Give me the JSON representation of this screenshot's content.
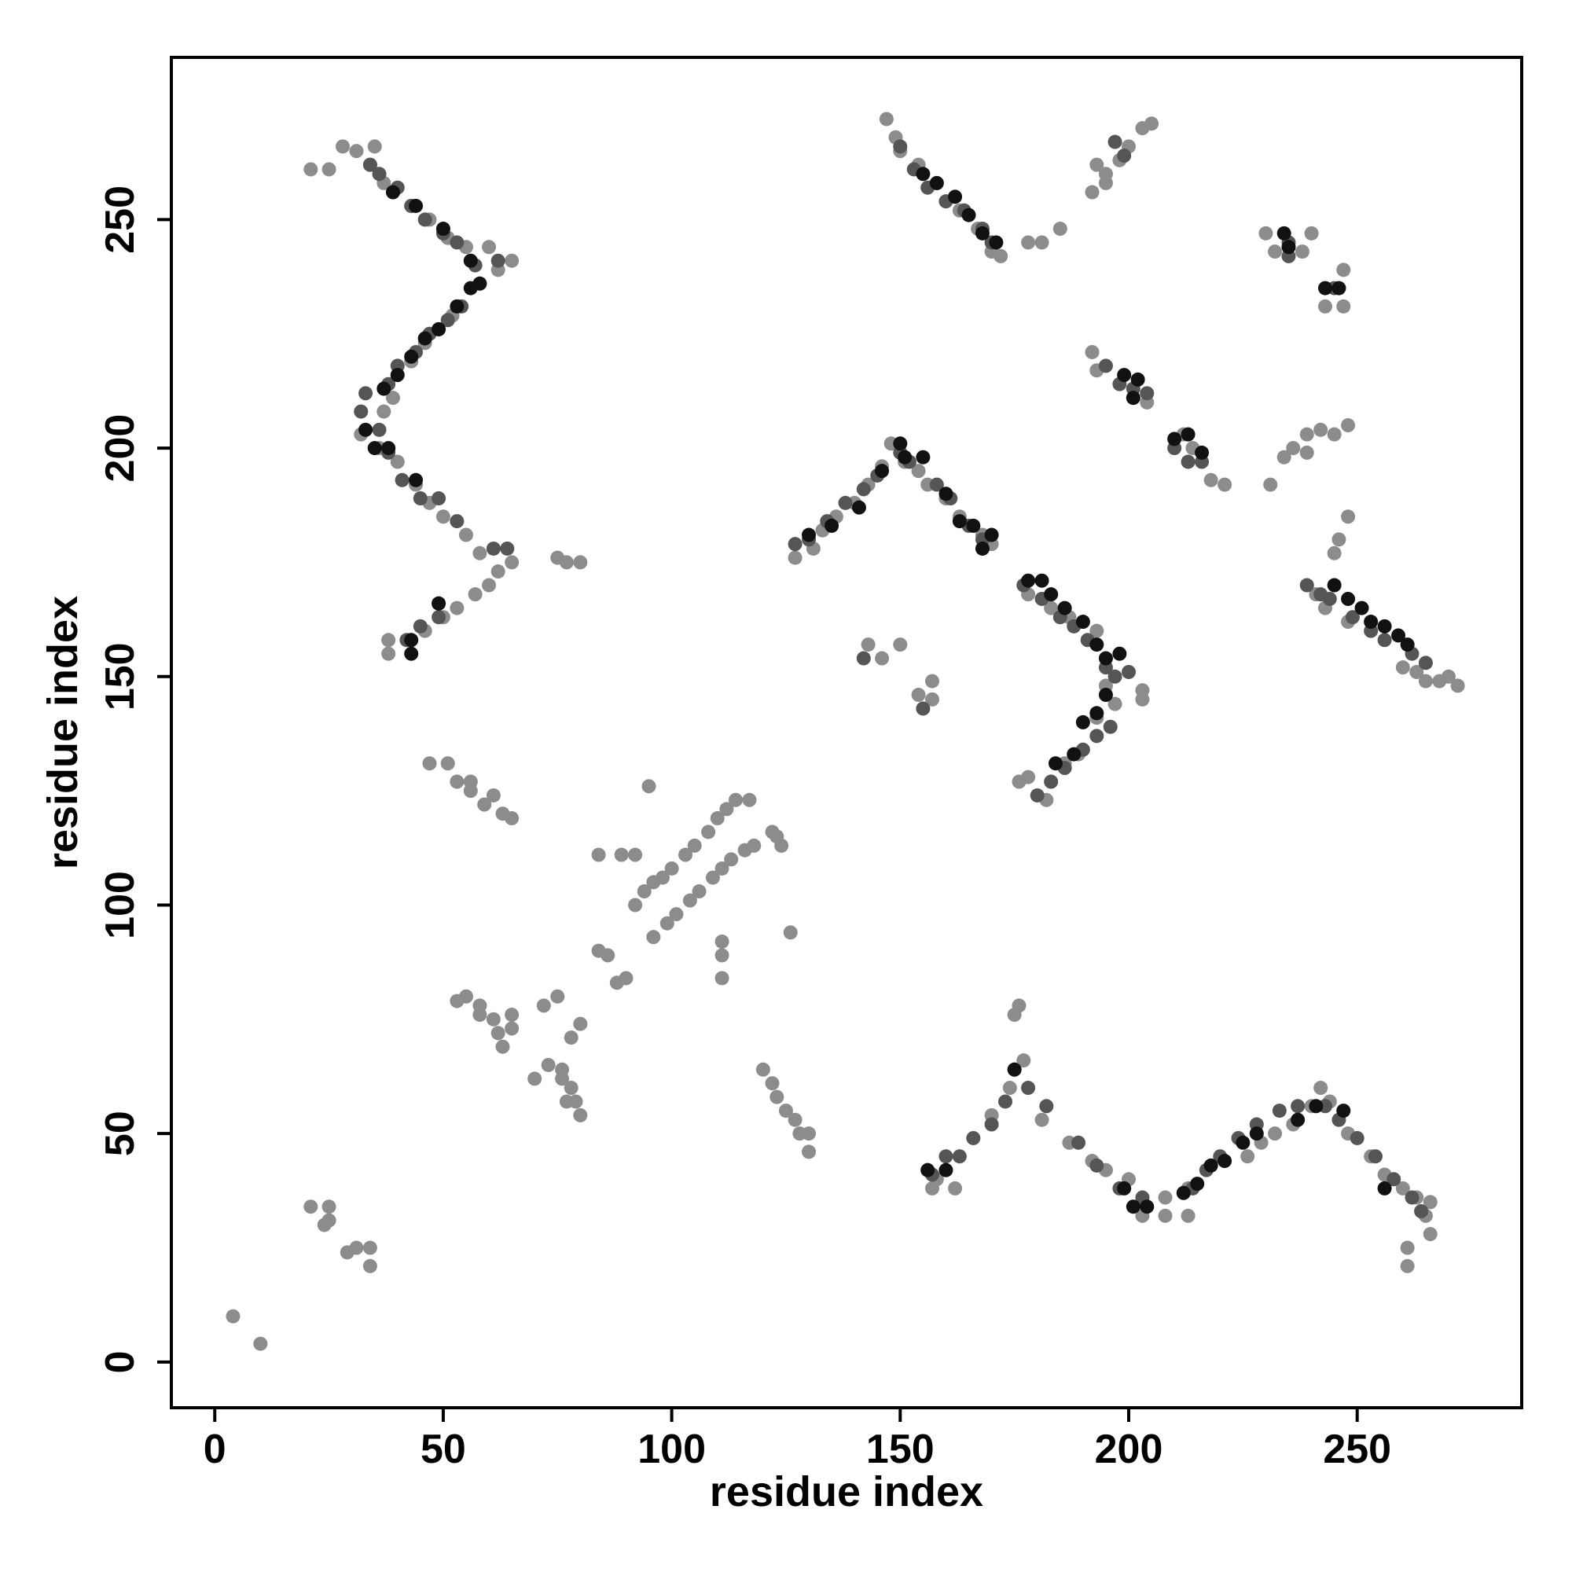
{
  "chart_data": {
    "type": "scatter",
    "xlabel": "residue index",
    "ylabel": "residue index",
    "xlim": [
      -9.5,
      286
    ],
    "ylim": [
      -10,
      285.5
    ],
    "xticks": [
      0,
      50,
      100,
      150,
      200,
      250
    ],
    "yticks": [
      0,
      50,
      100,
      150,
      200,
      250
    ],
    "grid": false,
    "series": [
      {
        "color": "#8c8c8c",
        "x": [
          4,
          10,
          21,
          25,
          24,
          25,
          29,
          31,
          34,
          34,
          21,
          25,
          28,
          31,
          35,
          34,
          37,
          39,
          43,
          47,
          51,
          55,
          60,
          62,
          65,
          52,
          49,
          46,
          43,
          39,
          37,
          32,
          36,
          40,
          44,
          47,
          50,
          55,
          58,
          62,
          65,
          60,
          57,
          53,
          50,
          46,
          38,
          38,
          77,
          80,
          75,
          47,
          51,
          53,
          56,
          59,
          63,
          65,
          61,
          56,
          95,
          84,
          89,
          92,
          92,
          94,
          96,
          98,
          100,
          103,
          105,
          108,
          110,
          112,
          114,
          117,
          96,
          99,
          101,
          104,
          106,
          109,
          111,
          113,
          116,
          118,
          122,
          124,
          123,
          86,
          84,
          88,
          90,
          111,
          111,
          111,
          126,
          53,
          55,
          58,
          58,
          61,
          62,
          63,
          65,
          65,
          72,
          75,
          78,
          80,
          70,
          73,
          76,
          78,
          76,
          79,
          80,
          77,
          120,
          122,
          123,
          125,
          127,
          128,
          130,
          130,
          143,
          146,
          150,
          154,
          157,
          157,
          147,
          149,
          150,
          154,
          158,
          163,
          167,
          170,
          172,
          178,
          181,
          185,
          192,
          195,
          198,
          200,
          203,
          205,
          193,
          195,
          158,
          157,
          162,
          170,
          174,
          175,
          175,
          176,
          177,
          181,
          187,
          192,
          195,
          200,
          203,
          203,
          208,
          208,
          213,
          213,
          226,
          229,
          232,
          236,
          240,
          242,
          244,
          248,
          253,
          256,
          260,
          261,
          261,
          263,
          265,
          266,
          266,
          230,
          232,
          238,
          240,
          243,
          247,
          247,
          192,
          193,
          201,
          204,
          221,
          218,
          214,
          212,
          176,
          178,
          182,
          186,
          189,
          193,
          195,
          197,
          203,
          203,
          178,
          183,
          187,
          193,
          231,
          234,
          236,
          239,
          242,
          245,
          248,
          239,
          245,
          246,
          248,
          241,
          243,
          248,
          260,
          263,
          265,
          268,
          270,
          272,
          127,
          131,
          133,
          136,
          140,
          143,
          146,
          148,
          151,
          154,
          156,
          160,
          163,
          168,
          170
        ],
        "y": [
          10,
          4,
          34,
          34,
          30,
          31,
          24,
          25,
          25,
          21,
          261,
          261,
          266,
          265,
          266,
          262,
          258,
          256,
          253,
          250,
          246,
          244,
          244,
          239,
          241,
          229,
          226,
          223,
          219,
          211,
          208,
          203,
          200,
          197,
          192,
          188,
          185,
          181,
          177,
          173,
          175,
          170,
          168,
          165,
          163,
          160,
          158,
          155,
          175,
          175,
          176,
          131,
          131,
          127,
          125,
          122,
          120,
          119,
          124,
          127,
          126,
          111,
          111,
          111,
          100,
          103,
          105,
          106,
          108,
          111,
          113,
          116,
          119,
          121,
          123,
          123,
          93,
          96,
          98,
          101,
          103,
          106,
          108,
          110,
          112,
          113,
          116,
          113,
          115,
          89,
          90,
          83,
          84,
          92,
          89,
          84,
          94,
          79,
          80,
          78,
          76,
          75,
          72,
          69,
          73,
          76,
          78,
          80,
          71,
          74,
          62,
          65,
          62,
          60,
          64,
          57,
          54,
          57,
          64,
          61,
          58,
          55,
          53,
          50,
          46,
          50,
          157,
          154,
          157,
          146,
          149,
          145,
          272,
          268,
          265,
          262,
          258,
          252,
          248,
          243,
          242,
          245,
          245,
          248,
          256,
          260,
          263,
          266,
          270,
          271,
          262,
          258,
          40,
          38,
          38,
          54,
          60,
          64,
          76,
          78,
          66,
          53,
          48,
          44,
          42,
          40,
          35,
          32,
          32,
          36,
          32,
          38,
          45,
          48,
          50,
          52,
          56,
          60,
          57,
          50,
          45,
          41,
          38,
          25,
          21,
          36,
          32,
          28,
          35,
          247,
          243,
          243,
          247,
          231,
          231,
          239,
          221,
          217,
          211,
          210,
          192,
          193,
          200,
          203,
          127,
          128,
          123,
          131,
          133,
          141,
          148,
          144,
          145,
          147,
          168,
          165,
          163,
          160,
          192,
          198,
          200,
          203,
          204,
          203,
          205,
          199,
          177,
          180,
          185,
          168,
          165,
          162,
          152,
          151,
          149,
          149,
          150,
          148,
          176,
          178,
          182,
          185,
          188,
          192,
          196,
          201,
          197,
          195,
          192,
          189,
          185,
          181,
          179
        ]
      },
      {
        "color": "#555555",
        "x": [
          32,
          33,
          36,
          38,
          40,
          44,
          47,
          51,
          54,
          34,
          36,
          40,
          43,
          46,
          50,
          53,
          57,
          62,
          38,
          41,
          45,
          49,
          53,
          61,
          64,
          42,
          45,
          49,
          49,
          157,
          160,
          163,
          166,
          170,
          173,
          178,
          182,
          189,
          193,
          198,
          203,
          214,
          217,
          220,
          224,
          228,
          233,
          237,
          243,
          246,
          250,
          254,
          258,
          262,
          264,
          150,
          153,
          156,
          160,
          164,
          168,
          170,
          197,
          199,
          235,
          235,
          245,
          195,
          198,
          201,
          204,
          210,
          213,
          216,
          155,
          142,
          127,
          130,
          134,
          138,
          142,
          145,
          150,
          152,
          158,
          161,
          165,
          168,
          177,
          181,
          185,
          188,
          191,
          195,
          197,
          200,
          196,
          193,
          190,
          186,
          183,
          180,
          244,
          249,
          253,
          256,
          262,
          265,
          239,
          242
        ],
        "y": [
          208,
          212,
          204,
          214,
          218,
          221,
          225,
          228,
          231,
          262,
          260,
          257,
          253,
          250,
          247,
          245,
          240,
          241,
          199,
          193,
          189,
          189,
          184,
          178,
          178,
          158,
          161,
          163,
          166,
          41,
          45,
          45,
          49,
          52,
          57,
          60,
          56,
          48,
          43,
          38,
          36,
          38,
          42,
          45,
          49,
          52,
          55,
          56,
          56,
          53,
          49,
          45,
          40,
          36,
          33,
          266,
          261,
          257,
          254,
          252,
          248,
          245,
          267,
          264,
          245,
          242,
          235,
          218,
          214,
          213,
          212,
          200,
          197,
          197,
          143,
          154,
          179,
          180,
          184,
          188,
          191,
          194,
          199,
          197,
          192,
          189,
          183,
          180,
          170,
          167,
          163,
          161,
          158,
          152,
          150,
          151,
          139,
          137,
          134,
          130,
          127,
          124,
          167,
          163,
          160,
          158,
          155,
          153,
          170,
          168
        ]
      },
      {
        "color": "#111111",
        "x": [
          37,
          40,
          43,
          46,
          49,
          53,
          56,
          33,
          35,
          38,
          44,
          39,
          44,
          50,
          56,
          58,
          43,
          43,
          49,
          156,
          160,
          175,
          199,
          201,
          204,
          212,
          215,
          218,
          221,
          225,
          228,
          237,
          241,
          247,
          256,
          155,
          158,
          162,
          165,
          168,
          171,
          235,
          243,
          246,
          234,
          199,
          202,
          201,
          210,
          213,
          216,
          150,
          151,
          155,
          146,
          141,
          135,
          130,
          178,
          181,
          183,
          186,
          190,
          193,
          195,
          198,
          195,
          193,
          190,
          188,
          184,
          160,
          163,
          166,
          168,
          170,
          245,
          248,
          251,
          253,
          256,
          259,
          261
        ],
        "y": [
          213,
          216,
          220,
          224,
          226,
          231,
          235,
          204,
          200,
          200,
          193,
          256,
          253,
          248,
          241,
          236,
          155,
          158,
          166,
          42,
          42,
          64,
          38,
          34,
          34,
          37,
          39,
          43,
          44,
          48,
          50,
          53,
          56,
          55,
          38,
          260,
          258,
          255,
          251,
          247,
          245,
          244,
          235,
          235,
          247,
          216,
          215,
          211,
          202,
          203,
          199,
          201,
          198,
          198,
          195,
          187,
          183,
          181,
          171,
          171,
          168,
          165,
          162,
          157,
          154,
          155,
          146,
          142,
          140,
          133,
          131,
          190,
          184,
          183,
          178,
          181,
          170,
          167,
          165,
          162,
          161,
          159,
          157
        ]
      }
    ]
  }
}
